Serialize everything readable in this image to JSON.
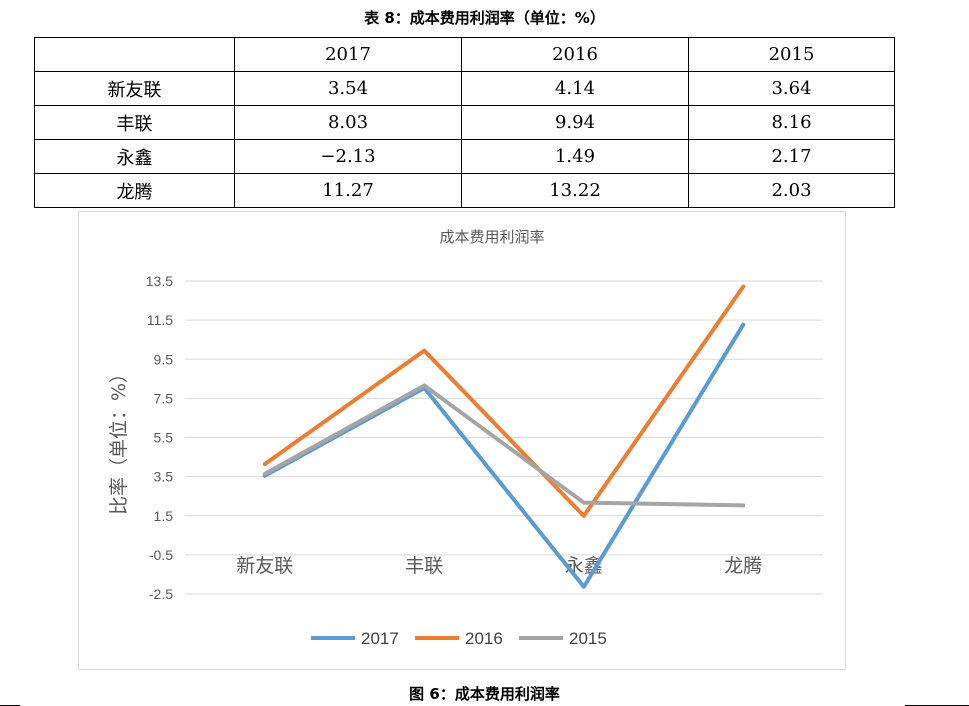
{
  "table": {
    "caption": "表 8：成本费用利润率（单位：%）",
    "columns": [
      "",
      "2017",
      "2016",
      "2015"
    ],
    "rows": [
      {
        "name": "新友联",
        "values": [
          "3.54",
          "4.14",
          "3.64"
        ]
      },
      {
        "name": "丰联",
        "values": [
          "8.03",
          "9.94",
          "8.16"
        ]
      },
      {
        "name": "永鑫",
        "values": [
          "−2.13",
          "1.49",
          "2.17"
        ]
      },
      {
        "name": "龙腾",
        "values": [
          "11.27",
          "13.22",
          "2.03"
        ]
      }
    ]
  },
  "figure_caption": "图 6：成本费用利润率",
  "chart_data": {
    "type": "line",
    "title": "成本费用利润率",
    "xlabel": "",
    "ylabel": "比率（单位：%）",
    "categories": [
      "新友联",
      "丰联",
      "永鑫",
      "龙腾"
    ],
    "series": [
      {
        "name": "2017",
        "color": "#5b9bd5",
        "values": [
          3.54,
          8.03,
          -2.13,
          11.27
        ]
      },
      {
        "name": "2016",
        "color": "#ed7d31",
        "values": [
          4.14,
          9.94,
          1.49,
          13.22
        ]
      },
      {
        "name": "2015",
        "color": "#a5a5a5",
        "values": [
          3.64,
          8.16,
          2.17,
          2.03
        ]
      }
    ],
    "yticks": [
      13.5,
      11.5,
      9.5,
      7.5,
      5.5,
      3.5,
      1.5,
      -0.5,
      -2.5
    ],
    "ytick_labels": [
      "13.5",
      "11.5",
      "9.5",
      "7.5",
      "5.5",
      "3.5",
      "1.5",
      "-0.5",
      "-2.5"
    ],
    "ylim": [
      -2.5,
      13.5
    ],
    "grid": true,
    "legend_position": "bottom"
  }
}
